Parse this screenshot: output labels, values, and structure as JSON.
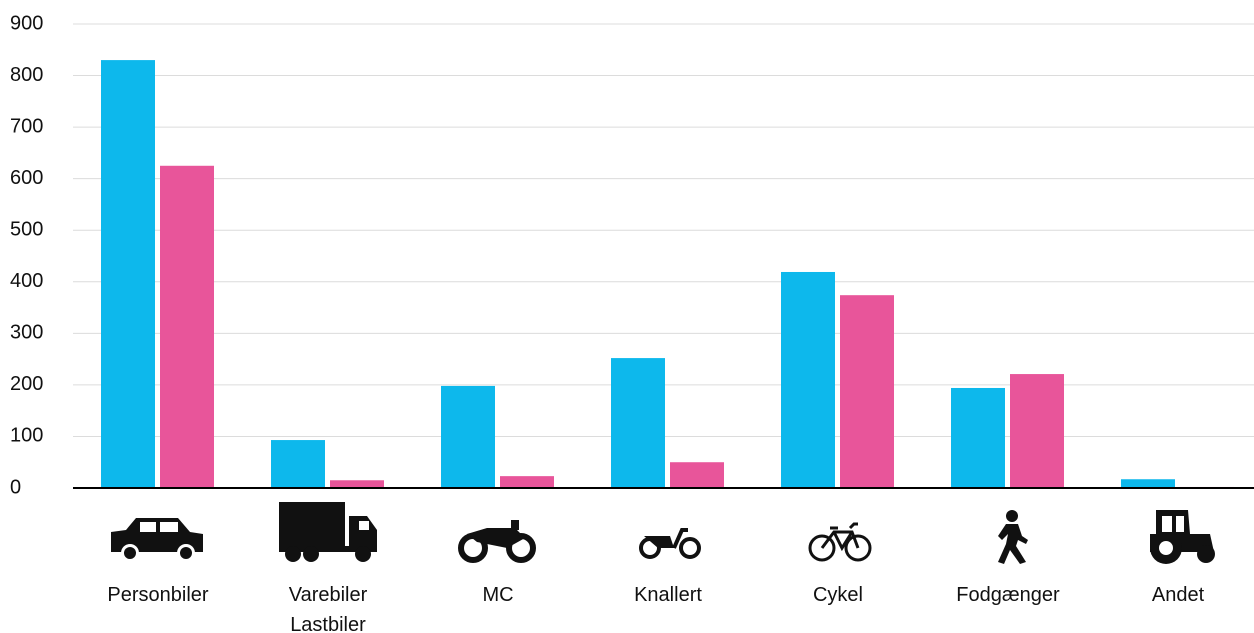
{
  "chart_data": {
    "type": "bar",
    "categories": [
      "Personbiler",
      "Varebiler\nLastbiler",
      "MC",
      "Knallert",
      "Cykel",
      "Fodgænger",
      "Andet"
    ],
    "series": [
      {
        "color": "#0db8ec",
        "values": [
          830,
          93,
          198,
          252,
          419,
          194,
          17
        ]
      },
      {
        "color": "#e8559a",
        "values": [
          625,
          15,
          23,
          50,
          374,
          221,
          2
        ]
      }
    ],
    "ylim": [
      0,
      900
    ],
    "yticks": [
      0,
      100,
      200,
      300,
      400,
      500,
      600,
      700,
      800,
      900
    ],
    "grid": true
  }
}
